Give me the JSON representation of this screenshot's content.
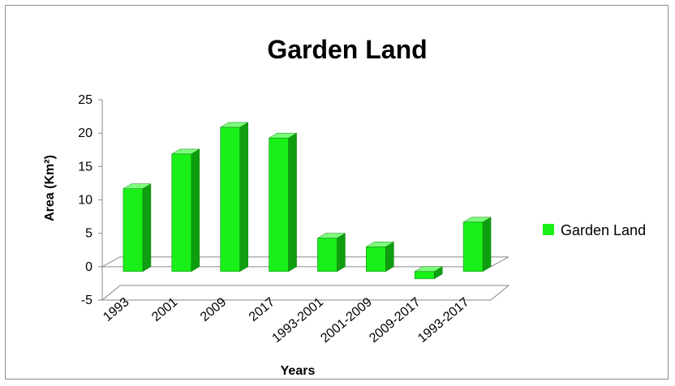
{
  "chart_data": {
    "type": "bar",
    "title": "Garden Land",
    "xlabel": "Years",
    "ylabel": "Area (Km²)",
    "categories": [
      "1993",
      "2001",
      "2009",
      "2017",
      "1993-2001",
      "2001-2009",
      "2009-2017",
      "1993-2017"
    ],
    "series": [
      {
        "name": "Garden Land",
        "values": [
          12.4,
          17.6,
          21.6,
          20.0,
          5.0,
          3.7,
          -1.1,
          7.4
        ]
      }
    ],
    "yticks": [
      "-5",
      "0",
      "5",
      "10",
      "15",
      "20",
      "25"
    ],
    "ylim": [
      -5,
      25
    ],
    "grid": false,
    "legend": "right",
    "colors": {
      "bar_front": "#19f019",
      "bar_side": "#0f9e0f",
      "bar_top": "#7dff7d",
      "edge": "#0a7a0a"
    }
  }
}
